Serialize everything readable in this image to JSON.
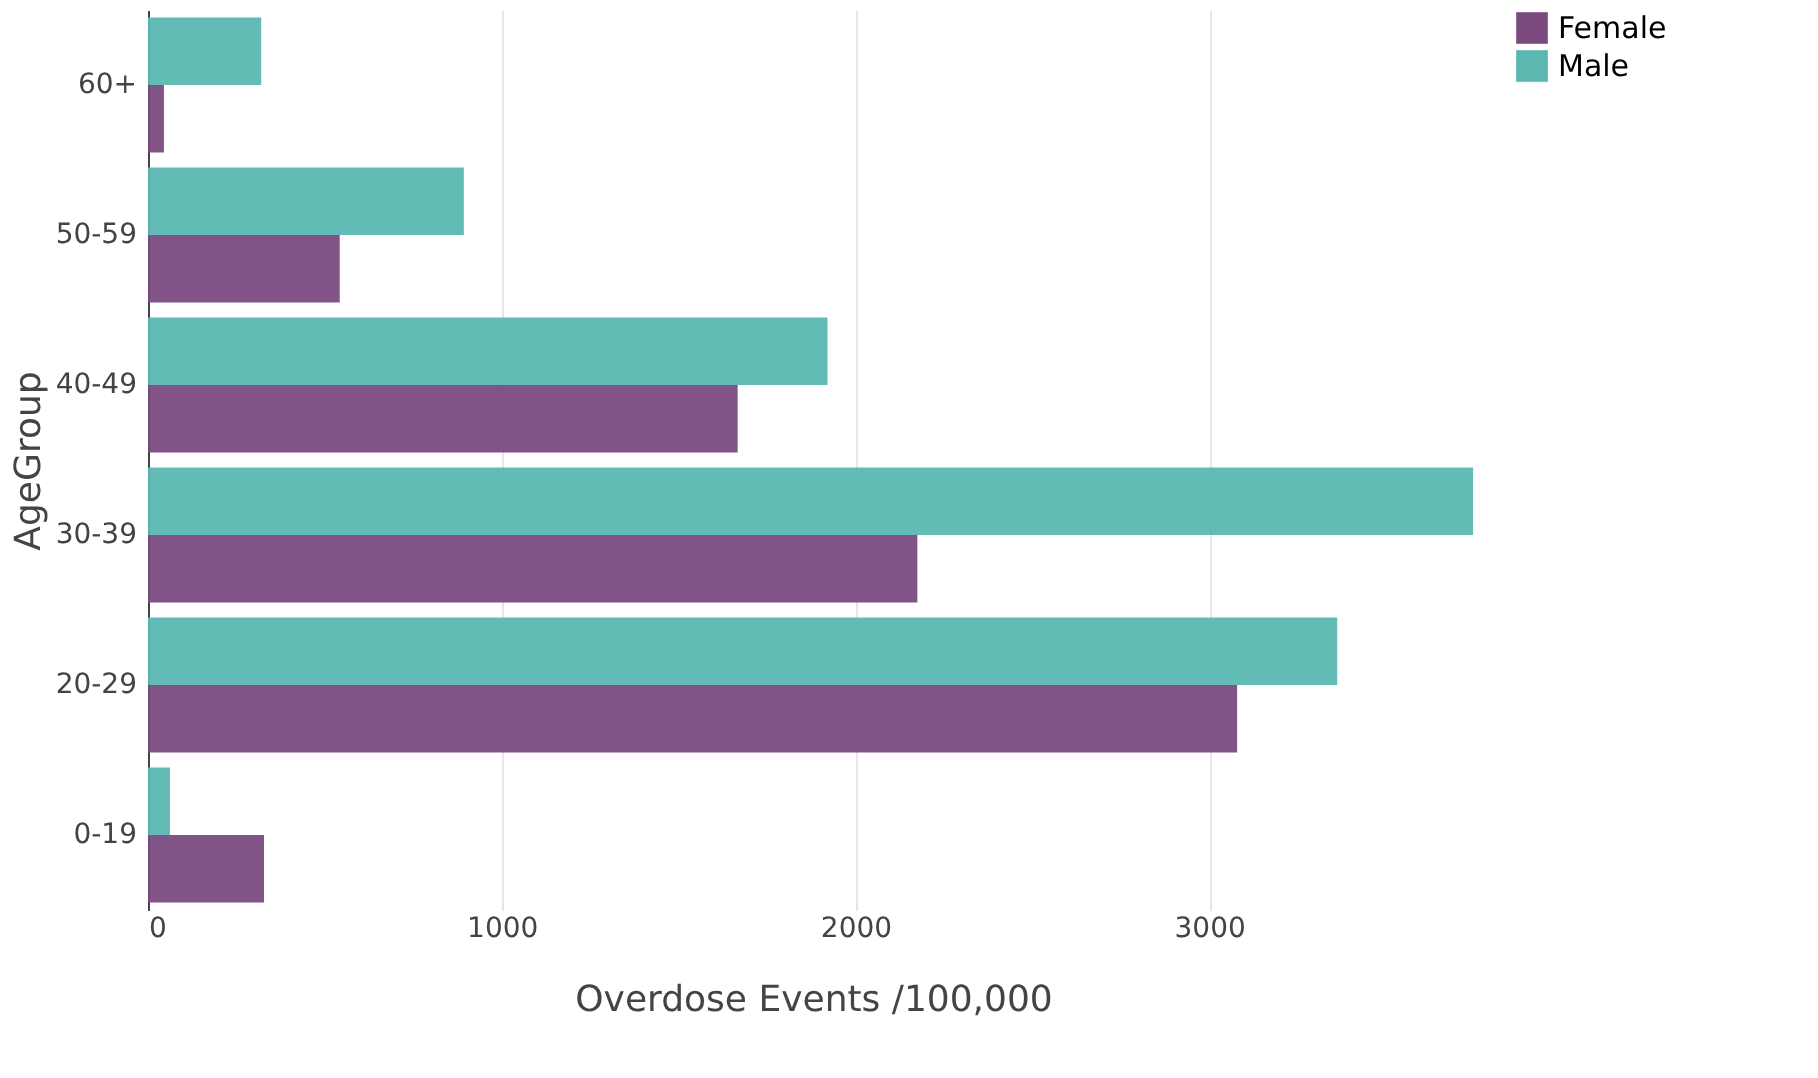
{
  "chart_data": {
    "type": "bar",
    "orientation": "horizontal",
    "xlabel": "Overdose Events /100,000",
    "ylabel": "AgeGroup",
    "categories": [
      "60+",
      "50-59",
      "40-49",
      "30-39",
      "20-29",
      "0-19"
    ],
    "series": [
      {
        "name": "Female",
        "color": "#7b4a7f",
        "values": [
          45,
          542,
          1667,
          2175,
          3079,
          328
        ]
      },
      {
        "name": "Male",
        "color": "#5ab8b1",
        "values": [
          320,
          893,
          1921,
          3746,
          3362,
          62
        ]
      }
    ],
    "xlim": [
      0,
      3760
    ],
    "xticks": [
      0,
      1000,
      2000,
      3000
    ],
    "grid": "x",
    "legend": "top right"
  }
}
